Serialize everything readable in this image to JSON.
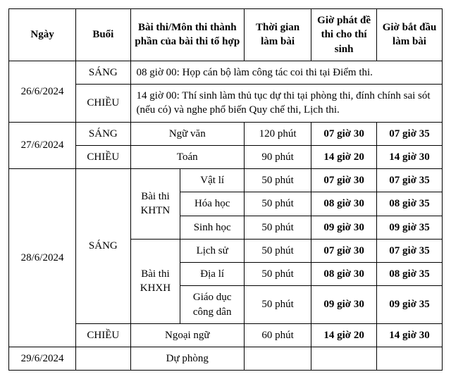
{
  "headers": {
    "ngay": "Ngày",
    "buoi": "Buổi",
    "mon": "Bài thi/Môn thi thành phần của bài thi tổ hợp",
    "thoigian": "Thời gian làm bài",
    "phatde": "Giờ phát đề thi cho thí sinh",
    "batdau": "Giờ bắt đầu làm bài"
  },
  "d26": {
    "ngay": "26/6/2024",
    "sang_buoi": "SÁNG",
    "sang_text": "08 giờ 00: Họp cán bộ làm công tác coi thi tại Điểm thi.",
    "chieu_buoi": "CHIỀU",
    "chieu_text": "14 giờ 00: Thí sinh làm thủ tục dự thi tại phòng thi, đính chính sai sót (nếu có) và nghe phổ biến Quy chế thi, Lịch thi."
  },
  "d27": {
    "ngay": "27/6/2024",
    "sang_buoi": "SÁNG",
    "sang_mon": "Ngữ văn",
    "sang_tg": "120 phút",
    "sang_phat": "07 giờ 30",
    "sang_bat": "07 giờ 35",
    "chieu_buoi": "CHIỀU",
    "chieu_mon": "Toán",
    "chieu_tg": "90 phút",
    "chieu_phat": "14 giờ 20",
    "chieu_bat": "14 giờ 30"
  },
  "d28": {
    "ngay": "28/6/2024",
    "sang_buoi": "SÁNG",
    "khtn": "Bài thi KHTN",
    "khxh": "Bài thi KHXH",
    "vatli": {
      "mon": "Vật lí",
      "tg": "50 phút",
      "phat": "07 giờ 30",
      "bat": "07 giờ 35"
    },
    "hoahoc": {
      "mon": "Hóa học",
      "tg": "50 phút",
      "phat": "08 giờ 30",
      "bat": "08 giờ 35"
    },
    "sinhhoc": {
      "mon": "Sinh học",
      "tg": "50 phút",
      "phat": "09 giờ 30",
      "bat": "09 giờ 35"
    },
    "lichsu": {
      "mon": "Lịch sử",
      "tg": "50 phút",
      "phat": "07 giờ 30",
      "bat": "07 giờ 35"
    },
    "diali": {
      "mon": "Địa lí",
      "tg": "50 phút",
      "phat": "08 giờ 30",
      "bat": "08 giờ 35"
    },
    "gdcd": {
      "mon": "Giáo dục công dân",
      "tg": "50 phút",
      "phat": "09 giờ 30",
      "bat": "09 giờ 35"
    },
    "chieu_buoi": "CHIỀU",
    "chieu_mon": "Ngoại ngữ",
    "chieu_tg": "60 phút",
    "chieu_phat": "14 giờ 20",
    "chieu_bat": "14 giờ 30"
  },
  "d29": {
    "ngay": "29/6/2024",
    "mon": "Dự phòng"
  }
}
